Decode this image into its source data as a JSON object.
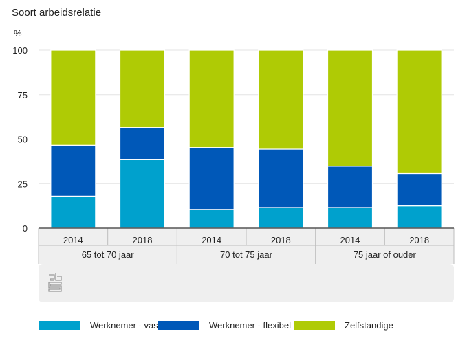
{
  "chart_data": {
    "type": "bar",
    "stacked": true,
    "title": "Soort arbeidsrelatie",
    "ylabel": "%",
    "ylim": [
      0,
      100
    ],
    "yticks": [
      "0",
      "25",
      "50",
      "75",
      "100"
    ],
    "grid": true,
    "groups": [
      "65 tot 70 jaar",
      "70 tot 75 jaar",
      "75 jaar of ouder"
    ],
    "categories": [
      "2014",
      "2018",
      "2014",
      "2018",
      "2014",
      "2018"
    ],
    "series": [
      {
        "name": "Werknemer - vast",
        "color": "#00a1cd",
        "values": [
          18,
          38.5,
          10.5,
          11.6,
          11.6,
          12.5
        ]
      },
      {
        "name": "Werknemer - flexibel",
        "color": "#0058b8",
        "values": [
          28.6,
          18,
          34.8,
          32.8,
          23.2,
          18.2
        ]
      },
      {
        "name": "Zelfstandige",
        "color": "#afcb05",
        "values": [
          53.4,
          43.5,
          54.7,
          55.6,
          65.2,
          69.3
        ]
      }
    ],
    "legend_position": "bottom"
  },
  "logo_text": "cbs"
}
